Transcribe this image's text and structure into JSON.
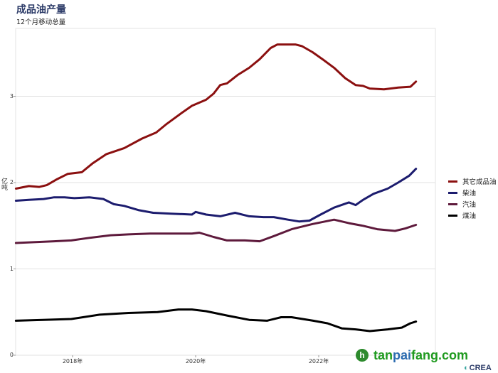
{
  "chart_data": {
    "type": "line",
    "title": "成品油产量",
    "subtitle": "12个月移动总量",
    "xlabel": "",
    "ylabel": "亿吨",
    "xlim": [
      2017.08,
      2023.87
    ],
    "ylim": [
      0,
      3.7
    ],
    "yticks": [
      0,
      1,
      2,
      3
    ],
    "ytick_labels": [
      "0",
      "1",
      "2",
      "3"
    ],
    "xticks": [
      2018,
      2020,
      2022
    ],
    "xtick_labels": [
      "2018年",
      "2020年",
      "2022年"
    ],
    "grid": true,
    "legend_position": "right",
    "series": [
      {
        "name": "其它成品油",
        "color": "#8b1010",
        "x": [
          2017.08,
          2017.29,
          2017.46,
          2017.58,
          2017.75,
          2017.92,
          2018.15,
          2018.32,
          2018.55,
          2018.84,
          2019.13,
          2019.36,
          2019.53,
          2019.76,
          2019.94,
          2020.17,
          2020.29,
          2020.4,
          2020.51,
          2020.69,
          2020.87,
          2021.04,
          2021.22,
          2021.33,
          2021.45,
          2021.62,
          2021.73,
          2021.9,
          2022.08,
          2022.25,
          2022.43,
          2022.6,
          2022.72,
          2022.83,
          2023.06,
          2023.29,
          2023.49,
          2023.58
        ],
        "values": [
          1.93,
          1.96,
          1.95,
          1.97,
          2.04,
          2.1,
          2.12,
          2.22,
          2.33,
          2.4,
          2.51,
          2.58,
          2.68,
          2.8,
          2.89,
          2.96,
          3.03,
          3.13,
          3.15,
          3.25,
          3.33,
          3.43,
          3.56,
          3.6,
          3.6,
          3.6,
          3.58,
          3.51,
          3.42,
          3.33,
          3.21,
          3.13,
          3.12,
          3.09,
          3.08,
          3.1,
          3.11,
          3.17
        ]
      },
      {
        "name": "柴油",
        "color": "#1c1c6e",
        "x": [
          2017.08,
          2017.29,
          2017.53,
          2017.7,
          2017.87,
          2018.03,
          2018.27,
          2018.5,
          2018.67,
          2018.84,
          2019.08,
          2019.31,
          2019.6,
          2019.94,
          2020.0,
          2020.17,
          2020.4,
          2020.64,
          2020.87,
          2021.1,
          2021.27,
          2021.5,
          2021.68,
          2021.85,
          2022.03,
          2022.25,
          2022.49,
          2022.6,
          2022.72,
          2022.89,
          2023.12,
          2023.29,
          2023.47,
          2023.58
        ],
        "values": [
          1.79,
          1.8,
          1.81,
          1.83,
          1.83,
          1.82,
          1.83,
          1.81,
          1.75,
          1.73,
          1.68,
          1.65,
          1.64,
          1.63,
          1.66,
          1.63,
          1.61,
          1.65,
          1.61,
          1.6,
          1.6,
          1.57,
          1.55,
          1.56,
          1.63,
          1.71,
          1.77,
          1.74,
          1.8,
          1.87,
          1.93,
          2.0,
          2.08,
          2.16
        ]
      },
      {
        "name": "汽油",
        "color": "#5e1a3c",
        "x": [
          2017.08,
          2017.4,
          2017.7,
          2017.98,
          2018.27,
          2018.62,
          2018.91,
          2019.26,
          2019.6,
          2019.94,
          2020.06,
          2020.29,
          2020.51,
          2020.8,
          2021.04,
          2021.27,
          2021.56,
          2021.9,
          2022.25,
          2022.49,
          2022.72,
          2022.95,
          2023.24,
          2023.41,
          2023.58
        ],
        "values": [
          1.3,
          1.31,
          1.32,
          1.33,
          1.36,
          1.39,
          1.4,
          1.41,
          1.41,
          1.41,
          1.42,
          1.37,
          1.33,
          1.33,
          1.32,
          1.38,
          1.46,
          1.52,
          1.57,
          1.53,
          1.5,
          1.46,
          1.44,
          1.47,
          1.51
        ]
      },
      {
        "name": "煤油",
        "color": "#000000",
        "x": [
          2017.08,
          2017.52,
          2017.98,
          2018.44,
          2018.91,
          2019.38,
          2019.72,
          2019.94,
          2020.17,
          2020.51,
          2020.87,
          2021.16,
          2021.39,
          2021.56,
          2021.91,
          2022.14,
          2022.38,
          2022.6,
          2022.83,
          2023.12,
          2023.35,
          2023.49,
          2023.58
        ],
        "values": [
          0.4,
          0.41,
          0.42,
          0.47,
          0.49,
          0.5,
          0.53,
          0.53,
          0.51,
          0.46,
          0.41,
          0.4,
          0.44,
          0.44,
          0.4,
          0.37,
          0.31,
          0.3,
          0.28,
          0.3,
          0.32,
          0.37,
          0.39
        ]
      }
    ]
  },
  "watermark": {
    "icon_letter": "h",
    "text_part1": "tan",
    "text_part2": "pai",
    "text_part3": "fang.com",
    "logo_text": "CREA",
    "logo_mark": "◐"
  }
}
